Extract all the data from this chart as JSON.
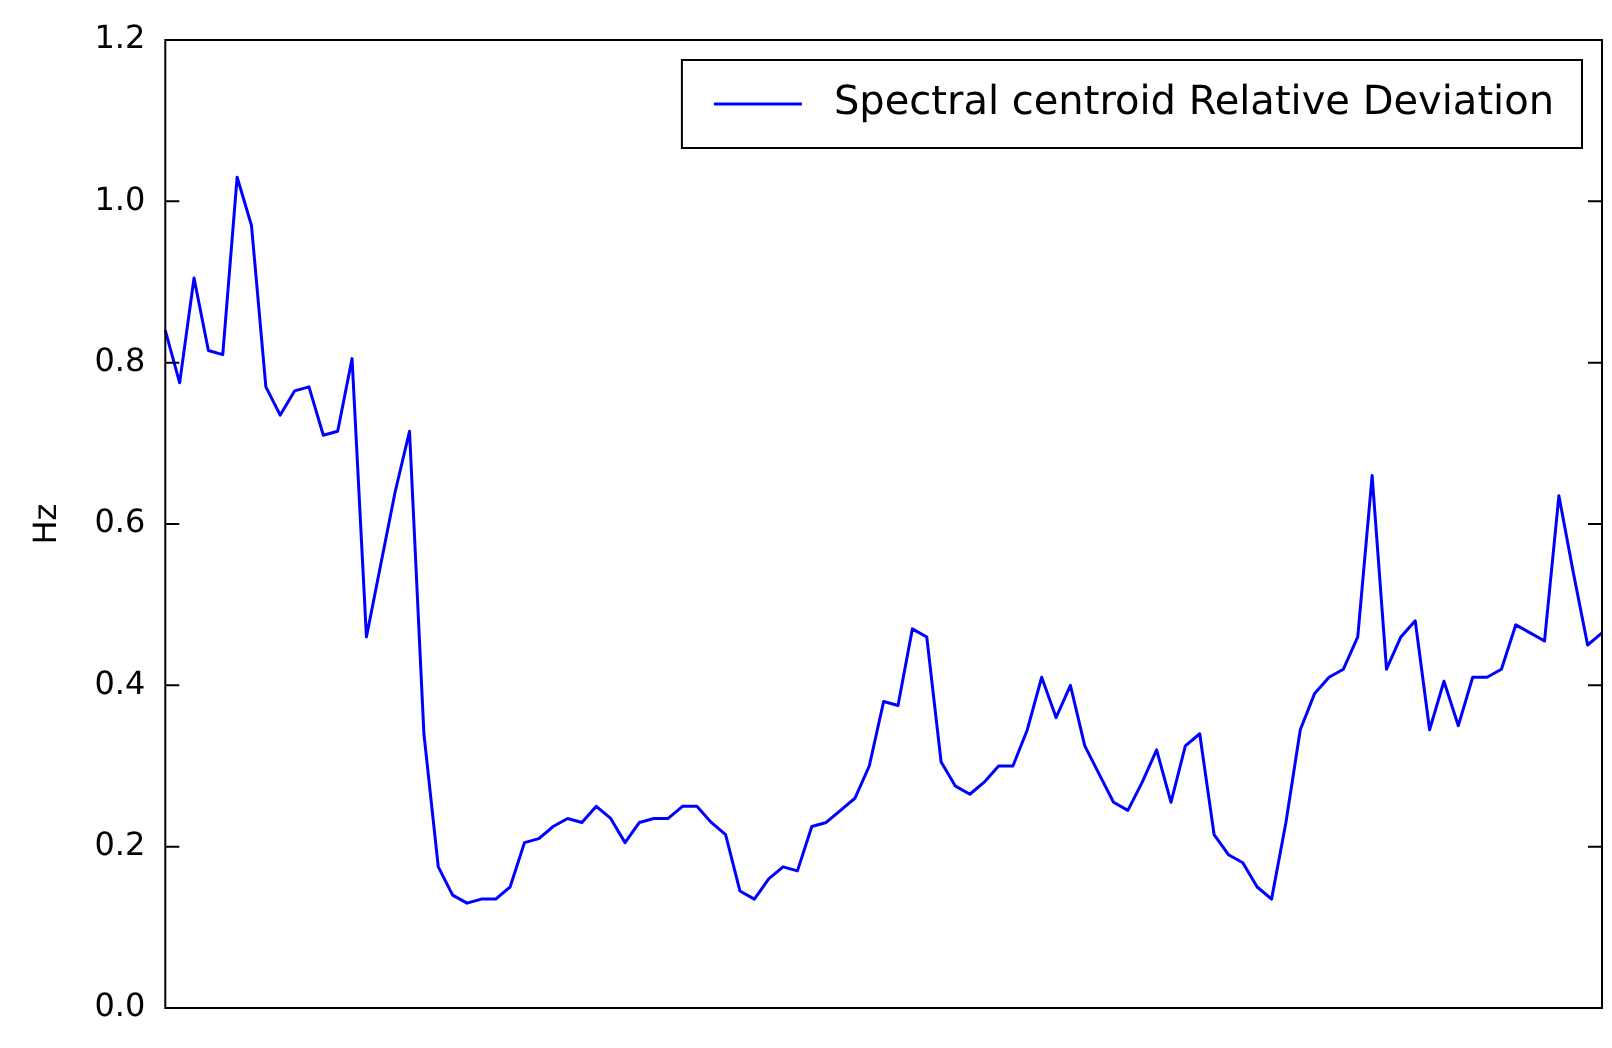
{
  "chart_data": {
    "type": "line",
    "ylabel": "Hz",
    "legend": "top right",
    "grid": false,
    "categories": [
      null,
      null,
      null,
      null,
      null,
      null,
      null,
      null,
      null,
      null,
      null,
      null,
      null,
      null,
      null,
      null,
      null,
      null,
      null,
      null,
      null,
      null,
      null,
      null,
      null,
      null,
      null,
      null,
      null,
      null,
      null,
      null,
      null,
      null,
      null,
      null,
      null,
      null,
      null,
      null,
      null,
      null,
      null,
      null,
      null,
      null,
      null,
      null,
      null,
      null,
      null,
      null,
      null,
      null,
      null,
      null,
      null,
      null,
      null,
      null,
      null,
      null,
      null,
      null,
      null,
      null,
      null,
      null,
      null,
      null,
      null,
      null,
      null,
      null,
      null,
      null,
      null,
      null,
      null,
      null,
      null,
      null,
      null,
      null,
      null,
      null,
      null,
      null,
      null,
      null,
      null,
      null,
      null,
      null,
      null,
      null,
      null,
      null,
      null,
      null,
      null
    ],
    "ylim": [
      0,
      1.2
    ],
    "yticks": [
      {
        "value": 0,
        "label": "0.0"
      },
      {
        "value": 0.2,
        "label": "0.2"
      },
      {
        "value": 0.4,
        "label": "0.4"
      },
      {
        "value": 0.6,
        "label": "0.6"
      },
      {
        "value": 0.8,
        "label": "0.8"
      },
      {
        "value": 1.0,
        "label": "1.0"
      },
      {
        "value": 1.2,
        "label": "1.2"
      }
    ],
    "series": [
      {
        "name": "Spectral centroid Relative Deviation",
        "color": "#0000ff",
        "values": [
          0.84,
          0.775,
          0.905,
          0.815,
          0.81,
          1.03,
          0.97,
          0.77,
          0.735,
          0.765,
          0.77,
          0.71,
          0.715,
          0.805,
          0.46,
          0.55,
          0.64,
          0.715,
          0.34,
          0.175,
          0.14,
          0.13,
          0.135,
          0.135,
          0.15,
          0.205,
          0.21,
          0.225,
          0.235,
          0.23,
          0.25,
          0.235,
          0.205,
          0.23,
          0.235,
          0.235,
          0.25,
          0.25,
          0.23,
          0.215,
          0.145,
          0.135,
          0.16,
          0.175,
          0.17,
          0.225,
          0.23,
          0.245,
          0.26,
          0.3,
          0.38,
          0.375,
          0.47,
          0.46,
          0.305,
          0.275,
          0.265,
          0.28,
          0.3,
          0.3,
          0.345,
          0.41,
          0.36,
          0.4,
          0.325,
          0.29,
          0.255,
          0.245,
          0.28,
          0.32,
          0.255,
          0.325,
          0.34,
          0.215,
          0.19,
          0.18,
          0.15,
          0.135,
          0.23,
          0.345,
          0.39,
          0.41,
          0.42,
          0.46,
          0.66,
          0.42,
          0.46,
          0.48,
          0.345,
          0.405,
          0.35,
          0.41,
          0.41,
          0.42,
          0.475,
          0.465,
          0.455,
          0.635,
          0.54,
          0.45,
          0.465
        ]
      }
    ]
  }
}
